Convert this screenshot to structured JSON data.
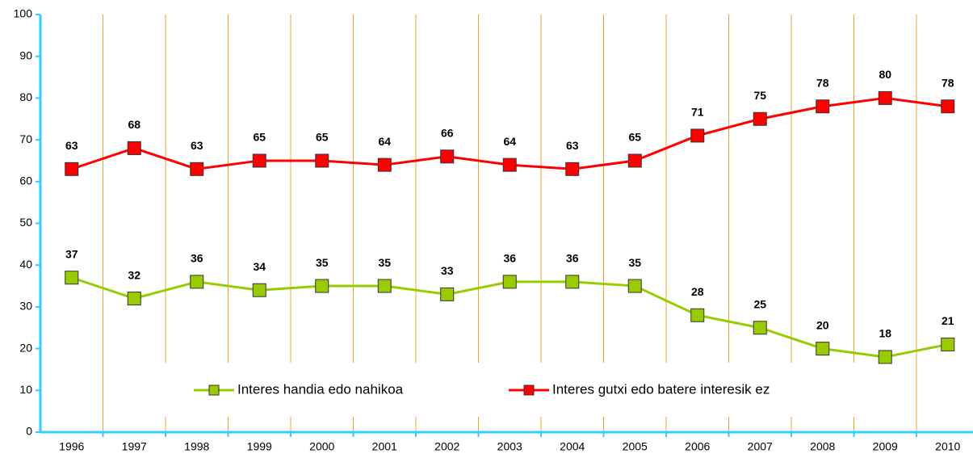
{
  "chart_data": {
    "type": "line",
    "categories": [
      "1996",
      "1997",
      "1998",
      "1999",
      "2000",
      "2001",
      "2002",
      "2003",
      "2004",
      "2005",
      "2006",
      "2007",
      "2008",
      "2009",
      "2010"
    ],
    "series": [
      {
        "name": "Interes handia edo nahikoa",
        "color": "#99cc00",
        "values": [
          37,
          32,
          36,
          34,
          35,
          35,
          33,
          36,
          36,
          35,
          28,
          25,
          20,
          18,
          21
        ]
      },
      {
        "name": "Interes gutxi edo batere interesik ez",
        "color": "#ff0000",
        "values": [
          63,
          68,
          63,
          65,
          65,
          64,
          66,
          64,
          63,
          65,
          71,
          75,
          78,
          80,
          78
        ]
      }
    ],
    "ylim": [
      0,
      100
    ],
    "yticks": [
      0,
      10,
      20,
      30,
      40,
      50,
      60,
      70,
      80,
      90,
      100
    ]
  }
}
